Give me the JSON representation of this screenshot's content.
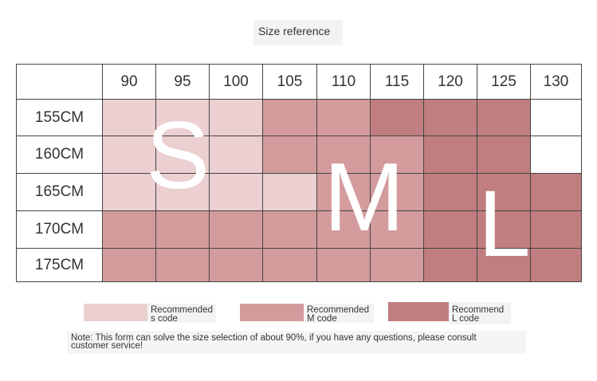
{
  "title": "Size reference",
  "columns": [
    "90",
    "95",
    "100",
    "105",
    "110",
    "115",
    "120",
    "125",
    "130"
  ],
  "rows": [
    {
      "label": "155CM",
      "cells": [
        "s",
        "s",
        "s",
        "m",
        "m",
        "l",
        "l",
        "l",
        "w"
      ]
    },
    {
      "label": "160CM",
      "cells": [
        "s",
        "s",
        "s",
        "m",
        "m",
        "m",
        "l",
        "l",
        "w"
      ]
    },
    {
      "label": "165CM",
      "cells": [
        "s",
        "s",
        "s",
        "s",
        "m",
        "m",
        "l",
        "l",
        "l"
      ]
    },
    {
      "label": "170CM",
      "cells": [
        "m",
        "m",
        "m",
        "m",
        "m",
        "m",
        "l",
        "l",
        "l"
      ]
    },
    {
      "label": "175CM",
      "cells": [
        "m",
        "m",
        "m",
        "m",
        "m",
        "m",
        "l",
        "l",
        "l"
      ]
    }
  ],
  "big_letters": {
    "s": "S",
    "m": "M",
    "l": "L"
  },
  "colors": {
    "s": "#ebcfd1",
    "m": "#d49b9d",
    "l": "#c07e80",
    "w": "#ffffff"
  },
  "legend": {
    "s": {
      "line1": "Recommended",
      "line2": "s code"
    },
    "m": {
      "line1": "Recommended",
      "line2": "M code"
    },
    "l": {
      "line1": "Recommend",
      "line2": "L code"
    }
  },
  "note": {
    "line1": "Note: This form can solve the size selection of about 90%, if you have any questions, please consult",
    "line2": "customer service!"
  }
}
